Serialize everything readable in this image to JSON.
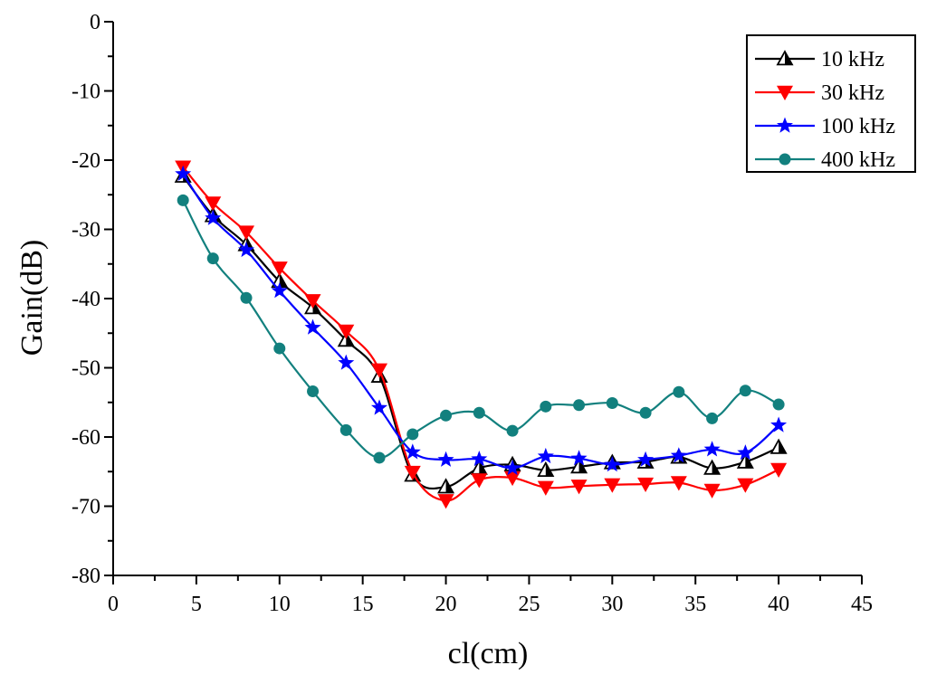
{
  "chart_data": {
    "type": "line",
    "title": "",
    "xlabel": "cl(cm)",
    "ylabel": "Gain(dB)",
    "xlim": [
      0,
      45
    ],
    "ylim": [
      -80,
      0
    ],
    "x_ticks": [
      0,
      5,
      10,
      15,
      20,
      25,
      30,
      35,
      40,
      45
    ],
    "y_ticks": [
      0,
      -10,
      -20,
      -30,
      -40,
      -50,
      -60,
      -70,
      -80
    ],
    "x_tick_labels": [
      "0",
      "5",
      "10",
      "15",
      "20",
      "25",
      "30",
      "35",
      "40",
      "45"
    ],
    "y_tick_labels": [
      "0",
      "-10",
      "-20",
      "-30",
      "-40",
      "-50",
      "-60",
      "-70",
      "-80"
    ],
    "grid": false,
    "legend_position": "top-right",
    "x": [
      4.2,
      6,
      8,
      10,
      12,
      14,
      16,
      18,
      20,
      22,
      24,
      26,
      28,
      30,
      32,
      34,
      36,
      38,
      40
    ],
    "series": [
      {
        "name": "10 kHz",
        "color": "#000000",
        "marker": "triangle-up-half",
        "values": [
          -22.3,
          -28.0,
          -32.2,
          -37.5,
          -41.3,
          -46.0,
          -51.2,
          -65.5,
          -67.2,
          -64.5,
          -64.0,
          -64.8,
          -64.3,
          -63.7,
          -63.6,
          -62.9,
          -64.5,
          -63.6,
          -61.5
        ]
      },
      {
        "name": "30 kHz",
        "color": "#ff0000",
        "marker": "triangle-down",
        "values": [
          -21.0,
          -26.2,
          -30.4,
          -35.6,
          -40.3,
          -44.7,
          -50.3,
          -65.1,
          -69.2,
          -66.2,
          -65.9,
          -67.3,
          -67.1,
          -66.9,
          -66.8,
          -66.6,
          -67.7,
          -66.9,
          -64.7
        ]
      },
      {
        "name": "100 kHz",
        "color": "#0000ff",
        "marker": "star",
        "values": [
          -22.0,
          -28.4,
          -33.0,
          -38.9,
          -44.2,
          -49.3,
          -55.8,
          -62.2,
          -63.3,
          -63.2,
          -64.5,
          -62.8,
          -63.1,
          -64.0,
          -63.3,
          -62.7,
          -61.8,
          -62.3,
          -58.3
        ]
      },
      {
        "name": "400 kHz",
        "color": "#12807e",
        "marker": "circle",
        "values": [
          -25.8,
          -34.2,
          -39.9,
          -47.2,
          -53.4,
          -59.0,
          -63.0,
          -59.6,
          -56.9,
          -56.5,
          -59.1,
          -55.6,
          -55.4,
          -55.1,
          -56.5,
          -53.5,
          -57.3,
          -53.3,
          -55.3
        ]
      }
    ]
  }
}
